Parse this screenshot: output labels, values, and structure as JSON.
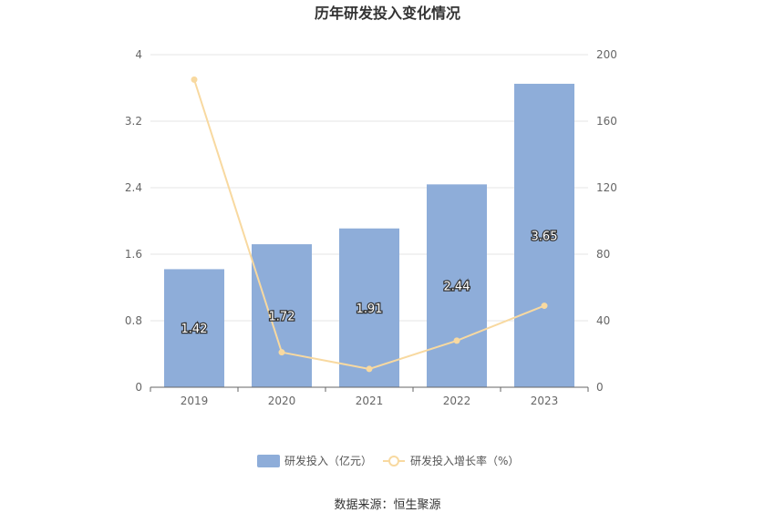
{
  "chart_data": {
    "type": "bar",
    "title": "历年研发投入变化情况",
    "categories": [
      "2019",
      "2020",
      "2021",
      "2022",
      "2023"
    ],
    "series": [
      {
        "name": "研发投入（亿元）",
        "type": "bar",
        "axis": "left",
        "values": [
          1.42,
          1.72,
          1.91,
          2.44,
          3.65
        ],
        "labels": [
          "1.42",
          "1.72",
          "1.91",
          "2.44",
          "3.65"
        ],
        "color": "#8eadd9"
      },
      {
        "name": "研发投入增长率（%）",
        "type": "line",
        "axis": "right",
        "values": [
          185,
          21,
          11,
          28,
          49
        ],
        "color": "#f8d9a0"
      }
    ],
    "y_left": {
      "min": 0,
      "max": 4,
      "ticks": [
        "0",
        "0.8",
        "1.6",
        "2.4",
        "3.2",
        "4"
      ]
    },
    "y_right": {
      "min": 0,
      "max": 200,
      "ticks": [
        "0",
        "40",
        "80",
        "120",
        "160",
        "200"
      ]
    },
    "grid": true,
    "legend_position": "bottom-center"
  },
  "footer": {
    "source": "数据来源：恒生聚源"
  }
}
